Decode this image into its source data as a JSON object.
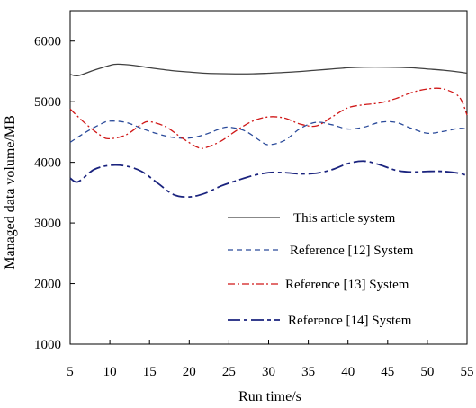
{
  "chart_data": {
    "type": "line",
    "title": "",
    "xlabel": "Run time/s",
    "ylabel": "Managed data volume/MB",
    "xlim": [
      5,
      55
    ],
    "ylim": [
      1000,
      6500
    ],
    "x_ticks": [
      5,
      10,
      15,
      20,
      25,
      30,
      35,
      40,
      45,
      50,
      55
    ],
    "y_ticks": [
      1000,
      2000,
      3000,
      4000,
      5000,
      6000
    ],
    "grid": false,
    "legend_position": "bottom-right",
    "series": [
      {
        "name": "This article system",
        "color": "#404040",
        "dash": "solid",
        "points": [
          [
            5,
            5450
          ],
          [
            6,
            5430
          ],
          [
            8,
            5520
          ],
          [
            10,
            5600
          ],
          [
            11,
            5620
          ],
          [
            13,
            5600
          ],
          [
            15,
            5560
          ],
          [
            18,
            5510
          ],
          [
            20,
            5490
          ],
          [
            22,
            5470
          ],
          [
            25,
            5460
          ],
          [
            28,
            5460
          ],
          [
            30,
            5470
          ],
          [
            33,
            5490
          ],
          [
            36,
            5520
          ],
          [
            38,
            5540
          ],
          [
            40,
            5560
          ],
          [
            42,
            5570
          ],
          [
            45,
            5570
          ],
          [
            48,
            5560
          ],
          [
            50,
            5540
          ],
          [
            52,
            5520
          ],
          [
            54,
            5490
          ],
          [
            55,
            5470
          ]
        ]
      },
      {
        "name": "Reference [12] System",
        "color": "#2a4a9a",
        "dash": "dashed",
        "points": [
          [
            5,
            4330
          ],
          [
            7,
            4500
          ],
          [
            9,
            4640
          ],
          [
            10,
            4680
          ],
          [
            12,
            4660
          ],
          [
            14,
            4560
          ],
          [
            16,
            4470
          ],
          [
            18,
            4410
          ],
          [
            20,
            4400
          ],
          [
            22,
            4460
          ],
          [
            24,
            4560
          ],
          [
            25,
            4580
          ],
          [
            27,
            4520
          ],
          [
            29,
            4350
          ],
          [
            30,
            4290
          ],
          [
            32,
            4360
          ],
          [
            34,
            4560
          ],
          [
            36,
            4660
          ],
          [
            38,
            4620
          ],
          [
            40,
            4550
          ],
          [
            42,
            4580
          ],
          [
            44,
            4660
          ],
          [
            46,
            4660
          ],
          [
            48,
            4560
          ],
          [
            50,
            4480
          ],
          [
            52,
            4510
          ],
          [
            54,
            4560
          ],
          [
            55,
            4550
          ]
        ]
      },
      {
        "name": "Reference [13] System",
        "color": "#d01818",
        "dash": "dashdot",
        "points": [
          [
            5,
            4880
          ],
          [
            7,
            4630
          ],
          [
            9,
            4430
          ],
          [
            10,
            4390
          ],
          [
            12,
            4450
          ],
          [
            14,
            4630
          ],
          [
            15,
            4670
          ],
          [
            17,
            4590
          ],
          [
            19,
            4410
          ],
          [
            21,
            4250
          ],
          [
            22,
            4240
          ],
          [
            24,
            4350
          ],
          [
            26,
            4530
          ],
          [
            28,
            4680
          ],
          [
            30,
            4750
          ],
          [
            32,
            4730
          ],
          [
            34,
            4630
          ],
          [
            36,
            4600
          ],
          [
            38,
            4750
          ],
          [
            40,
            4900
          ],
          [
            42,
            4950
          ],
          [
            44,
            4980
          ],
          [
            46,
            5050
          ],
          [
            48,
            5150
          ],
          [
            50,
            5210
          ],
          [
            52,
            5210
          ],
          [
            54,
            5080
          ],
          [
            55,
            4780
          ]
        ]
      },
      {
        "name": "Reference [14] System",
        "color": "#1a237e",
        "dash": "longdash",
        "points": [
          [
            5,
            3740
          ],
          [
            6,
            3680
          ],
          [
            8,
            3880
          ],
          [
            10,
            3950
          ],
          [
            12,
            3940
          ],
          [
            14,
            3850
          ],
          [
            16,
            3660
          ],
          [
            18,
            3470
          ],
          [
            20,
            3430
          ],
          [
            22,
            3490
          ],
          [
            24,
            3610
          ],
          [
            26,
            3700
          ],
          [
            28,
            3780
          ],
          [
            30,
            3830
          ],
          [
            32,
            3830
          ],
          [
            34,
            3810
          ],
          [
            36,
            3820
          ],
          [
            38,
            3880
          ],
          [
            40,
            3980
          ],
          [
            42,
            4020
          ],
          [
            44,
            3960
          ],
          [
            46,
            3870
          ],
          [
            48,
            3840
          ],
          [
            50,
            3850
          ],
          [
            52,
            3850
          ],
          [
            54,
            3820
          ],
          [
            55,
            3780
          ]
        ]
      }
    ]
  }
}
